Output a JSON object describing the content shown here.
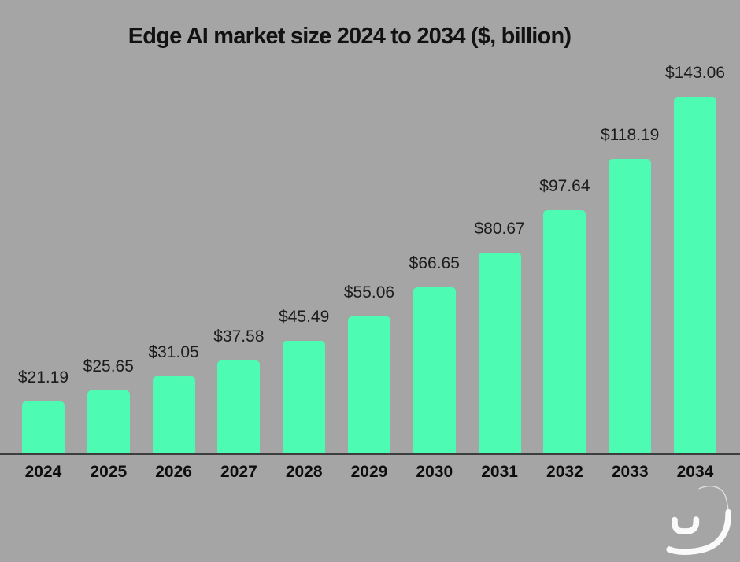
{
  "page": {
    "background_color": "#a5a5a5"
  },
  "chart_data": {
    "type": "bar",
    "title": "Edge AI market size 2024 to 2034 ($, billion)",
    "categories": [
      "2024",
      "2025",
      "2026",
      "2027",
      "2028",
      "2029",
      "2030",
      "2031",
      "2032",
      "2033",
      "2034"
    ],
    "values": [
      21.19,
      25.65,
      31.05,
      37.58,
      45.49,
      55.06,
      66.65,
      80.67,
      97.64,
      118.19,
      143.06
    ],
    "value_labels": [
      "$21.19",
      "$25.65",
      "$31.05",
      "$37.58",
      "$45.49",
      "$55.06",
      "$66.65",
      "$80.67",
      "$97.64",
      "$118.19",
      "$143.06"
    ],
    "value_prefix": "$",
    "xlabel": "",
    "ylabel": "",
    "ylim": [
      0,
      150
    ],
    "grid": false,
    "legend": false,
    "bar_color": "#4dfcb2",
    "background_color": "#a5a5a5",
    "axis_line_color": "#3d3d3d",
    "title_color": "#121212",
    "value_label_color": "#1c1c1c",
    "tick_label_color": "#0d0d0d"
  },
  "logo": {
    "stroke_color": "#fafafa",
    "thin_line_color": "#e0e0dc",
    "shade_color": "#9a9a9a",
    "gradient_stops": [
      "#17c98a",
      "#a8f7dd",
      "#e8fef6",
      "#3bc0f5",
      "#3346f0"
    ]
  }
}
